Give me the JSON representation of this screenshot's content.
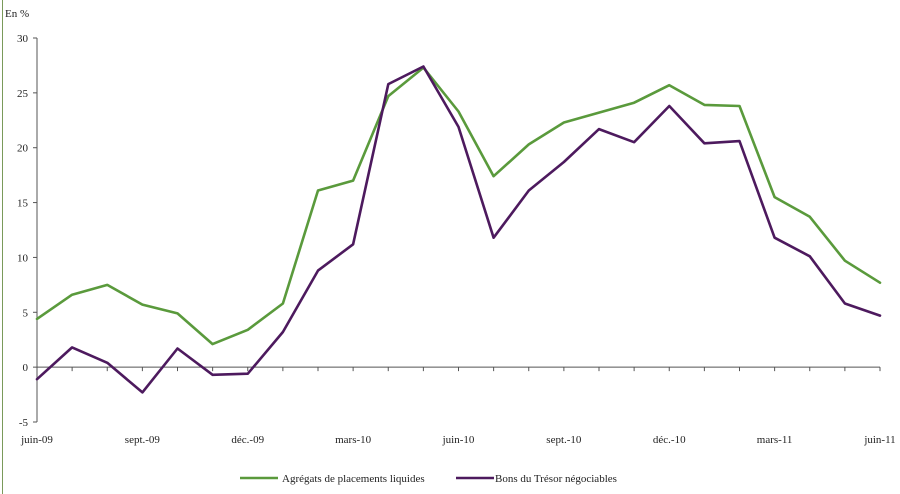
{
  "chart_data": {
    "type": "line",
    "ylabel": "En %",
    "ylim": [
      -5,
      30
    ],
    "yticks": [
      -5,
      0,
      5,
      10,
      15,
      20,
      25,
      30
    ],
    "x_tick_labels": [
      "juin-09",
      "sept.-09",
      "déc.-09",
      "mars-10",
      "juin-10",
      "sept.-10",
      "déc.-10",
      "mars-11",
      "juin-11"
    ],
    "x": [
      "juin-09",
      "juil.-09",
      "août-09",
      "sept.-09",
      "oct.-09",
      "nov.-09",
      "déc.-09",
      "janv.-10",
      "févr.-10",
      "mars-10",
      "avr.-10",
      "mai-10",
      "juin-10",
      "juil.-10",
      "août-10",
      "sept.-10",
      "oct.-10",
      "nov.-10",
      "déc.-10",
      "janv.-11",
      "févr.-11",
      "mars-11",
      "avr.-11",
      "mai-11",
      "juin-11"
    ],
    "series": [
      {
        "name": "Agrégats de placements liquides",
        "color": "#5a9a3c",
        "values": [
          4.4,
          6.6,
          7.5,
          5.7,
          4.9,
          2.1,
          3.4,
          5.8,
          16.1,
          17.0,
          24.7,
          27.3,
          23.3,
          17.4,
          20.3,
          22.3,
          23.2,
          24.1,
          25.7,
          23.9,
          23.8,
          15.5,
          13.7,
          9.7,
          7.7
        ]
      },
      {
        "name": "Bons du Trésor négociables",
        "color": "#4d1a5e",
        "values": [
          -1.1,
          1.8,
          0.4,
          -2.3,
          1.7,
          -0.7,
          -0.6,
          3.2,
          8.8,
          11.2,
          25.8,
          27.4,
          21.9,
          11.8,
          16.1,
          18.7,
          21.7,
          20.5,
          23.8,
          20.4,
          20.6,
          11.8,
          10.1,
          5.8,
          4.7
        ]
      }
    ],
    "grid": false,
    "legend_position": "bottom-center"
  }
}
